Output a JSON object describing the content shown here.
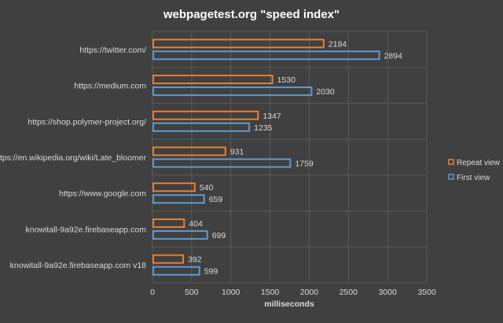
{
  "chart_data": {
    "type": "bar",
    "orientation": "horizontal",
    "title": "webpagetest.org \"speed index\"",
    "xlabel": "milliseconds",
    "ylabel": "",
    "xlim": [
      0,
      3500
    ],
    "xticks": [
      0,
      500,
      1000,
      1500,
      2000,
      2500,
      3000,
      3500
    ],
    "grid": true,
    "legend_position": "right",
    "categories": [
      "https://twitter.com/",
      "https://medium.com",
      "https://shop.polymer-project.org/",
      "https://en.wikipedia.org/wiki/Late_bloomer",
      "https://www.google.com",
      "knowitall-9a92e.firebaseapp.com",
      "knowitall-9a92e.firebaseapp.com v18"
    ],
    "series": [
      {
        "name": "Repeat view",
        "color": "#ED7D31",
        "values": [
          2184,
          1530,
          1347,
          931,
          540,
          404,
          392
        ]
      },
      {
        "name": "First view",
        "color": "#5B9BD5",
        "values": [
          2894,
          2030,
          1235,
          1759,
          659,
          699,
          599
        ]
      }
    ],
    "colors": {
      "background": "#404040",
      "text": "#D9D9D9",
      "grid": "#595959"
    }
  }
}
